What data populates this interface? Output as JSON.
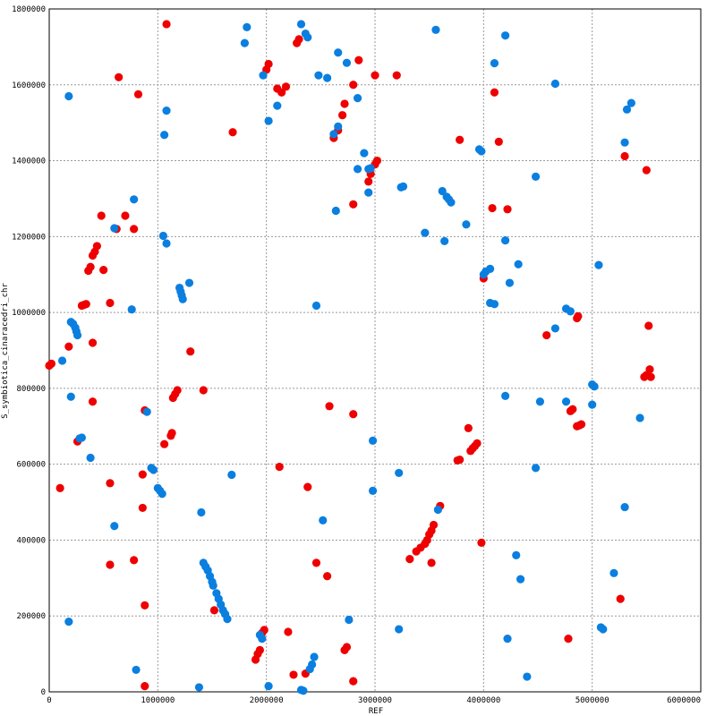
{
  "chart_data": {
    "type": "scatter",
    "xlabel": "REF",
    "ylabel": "S_symbiotica_cinaracedri_chr",
    "xlim": [
      0,
      6000000
    ],
    "ylim": [
      0,
      1800000
    ],
    "grid": true,
    "legend": "none",
    "x_ticks": [
      "0",
      "1000000",
      "2000000",
      "3000000",
      "4000000",
      "5000000",
      "6000000"
    ],
    "y_ticks": [
      "0",
      "200000",
      "400000",
      "600000",
      "800000",
      "1000000",
      "1200000",
      "1400000",
      "1600000",
      "1800000"
    ],
    "series": [
      {
        "color": "#ee0000",
        "points": [
          [
            1080000,
            1760000
          ],
          [
            640000,
            1620000
          ],
          [
            820000,
            1575000
          ],
          [
            1690000,
            1475000
          ],
          [
            2000000,
            1640000
          ],
          [
            2020000,
            1655000
          ],
          [
            2100000,
            1590000
          ],
          [
            2140000,
            1580000
          ],
          [
            2180000,
            1595000
          ],
          [
            2280000,
            1710000
          ],
          [
            2300000,
            1720000
          ],
          [
            2800000,
            1600000
          ],
          [
            2850000,
            1665000
          ],
          [
            3000000,
            1625000
          ],
          [
            3200000,
            1625000
          ],
          [
            4100000,
            1580000
          ],
          [
            2620000,
            1460000
          ],
          [
            2660000,
            1480000
          ],
          [
            2700000,
            1520000
          ],
          [
            2720000,
            1550000
          ],
          [
            3780000,
            1455000
          ],
          [
            4140000,
            1450000
          ],
          [
            5300000,
            1412000
          ],
          [
            5500000,
            1375000
          ],
          [
            2940000,
            1345000
          ],
          [
            2960000,
            1365000
          ],
          [
            3000000,
            1390000
          ],
          [
            3020000,
            1400000
          ],
          [
            2800000,
            1285000
          ],
          [
            4080000,
            1275000
          ],
          [
            4220000,
            1272000
          ],
          [
            480000,
            1255000
          ],
          [
            700000,
            1255000
          ],
          [
            780000,
            1220000
          ],
          [
            620000,
            1220000
          ],
          [
            360000,
            1110000
          ],
          [
            380000,
            1120000
          ],
          [
            400000,
            1150000
          ],
          [
            420000,
            1160000
          ],
          [
            440000,
            1175000
          ],
          [
            500000,
            1112000
          ],
          [
            4000000,
            1090000
          ],
          [
            300000,
            1018000
          ],
          [
            320000,
            1020000
          ],
          [
            340000,
            1022000
          ],
          [
            560000,
            1025000
          ],
          [
            180000,
            910000
          ],
          [
            400000,
            920000
          ],
          [
            4580000,
            940000
          ],
          [
            4860000,
            985000
          ],
          [
            4870000,
            990000
          ],
          [
            0,
            860000
          ],
          [
            20000,
            865000
          ],
          [
            1300000,
            897000
          ],
          [
            5520000,
            965000
          ],
          [
            5480000,
            830000
          ],
          [
            5500000,
            835000
          ],
          [
            5530000,
            850000
          ],
          [
            5540000,
            830000
          ],
          [
            1180000,
            795000
          ],
          [
            1160000,
            785000
          ],
          [
            1140000,
            775000
          ],
          [
            1420000,
            795000
          ],
          [
            400000,
            765000
          ],
          [
            880000,
            742000
          ],
          [
            2580000,
            753000
          ],
          [
            2800000,
            732000
          ],
          [
            4800000,
            740000
          ],
          [
            4820000,
            745000
          ],
          [
            4860000,
            700000
          ],
          [
            4880000,
            702000
          ],
          [
            4900000,
            705000
          ],
          [
            3860000,
            695000
          ],
          [
            3880000,
            635000
          ],
          [
            3900000,
            642000
          ],
          [
            3920000,
            648000
          ],
          [
            3940000,
            655000
          ],
          [
            3760000,
            610000
          ],
          [
            3780000,
            612000
          ],
          [
            260000,
            660000
          ],
          [
            1060000,
            653000
          ],
          [
            1120000,
            675000
          ],
          [
            1130000,
            682000
          ],
          [
            2120000,
            593000
          ],
          [
            860000,
            573000
          ],
          [
            100000,
            537000
          ],
          [
            560000,
            550000
          ],
          [
            2380000,
            540000
          ],
          [
            860000,
            485000
          ],
          [
            3600000,
            490000
          ],
          [
            3460000,
            390000
          ],
          [
            3480000,
            400000
          ],
          [
            3500000,
            415000
          ],
          [
            3520000,
            425000
          ],
          [
            3540000,
            440000
          ],
          [
            3420000,
            380000
          ],
          [
            3380000,
            370000
          ],
          [
            3320000,
            350000
          ],
          [
            3520000,
            340000
          ],
          [
            3980000,
            393000
          ],
          [
            560000,
            335000
          ],
          [
            780000,
            347000
          ],
          [
            2460000,
            340000
          ],
          [
            2560000,
            305000
          ],
          [
            880000,
            228000
          ],
          [
            1520000,
            215000
          ],
          [
            5260000,
            245000
          ],
          [
            1900000,
            85000
          ],
          [
            1920000,
            100000
          ],
          [
            1940000,
            110000
          ],
          [
            1960000,
            155000
          ],
          [
            1980000,
            163000
          ],
          [
            2200000,
            158000
          ],
          [
            2720000,
            110000
          ],
          [
            2740000,
            118000
          ],
          [
            2250000,
            45000
          ],
          [
            2360000,
            48000
          ],
          [
            4780000,
            140000
          ],
          [
            880000,
            15000
          ],
          [
            2800000,
            28000
          ]
        ]
      },
      {
        "color": "#0a7fe0",
        "points": [
          [
            2320000,
            1760000
          ],
          [
            2360000,
            1735000
          ],
          [
            2380000,
            1725000
          ],
          [
            1820000,
            1752000
          ],
          [
            1800000,
            1710000
          ],
          [
            3560000,
            1745000
          ],
          [
            4200000,
            1730000
          ],
          [
            2660000,
            1685000
          ],
          [
            2740000,
            1658000
          ],
          [
            4100000,
            1657000
          ],
          [
            4660000,
            1603000
          ],
          [
            180000,
            1570000
          ],
          [
            1080000,
            1532000
          ],
          [
            1970000,
            1625000
          ],
          [
            2480000,
            1625000
          ],
          [
            2560000,
            1618000
          ],
          [
            2100000,
            1545000
          ],
          [
            2020000,
            1505000
          ],
          [
            2620000,
            1470000
          ],
          [
            2660000,
            1490000
          ],
          [
            2840000,
            1565000
          ],
          [
            5320000,
            1535000
          ],
          [
            5360000,
            1552000
          ],
          [
            1060000,
            1468000
          ],
          [
            5300000,
            1448000
          ],
          [
            3960000,
            1430000
          ],
          [
            3980000,
            1425000
          ],
          [
            2900000,
            1420000
          ],
          [
            2840000,
            1378000
          ],
          [
            2940000,
            1378000
          ],
          [
            2960000,
            1380000
          ],
          [
            4480000,
            1358000
          ],
          [
            3240000,
            1330000
          ],
          [
            3260000,
            1332000
          ],
          [
            2940000,
            1316000
          ],
          [
            3620000,
            1320000
          ],
          [
            3660000,
            1305000
          ],
          [
            3680000,
            1298000
          ],
          [
            3700000,
            1290000
          ],
          [
            2640000,
            1268000
          ],
          [
            3840000,
            1232000
          ],
          [
            600000,
            1222000
          ],
          [
            780000,
            1298000
          ],
          [
            1050000,
            1202000
          ],
          [
            1080000,
            1182000
          ],
          [
            3460000,
            1210000
          ],
          [
            3640000,
            1188000
          ],
          [
            4200000,
            1190000
          ],
          [
            4320000,
            1127000
          ],
          [
            5060000,
            1125000
          ],
          [
            4000000,
            1100000
          ],
          [
            4020000,
            1108000
          ],
          [
            4060000,
            1115000
          ],
          [
            4240000,
            1078000
          ],
          [
            1200000,
            1065000
          ],
          [
            1210000,
            1055000
          ],
          [
            1220000,
            1045000
          ],
          [
            1230000,
            1035000
          ],
          [
            1290000,
            1078000
          ],
          [
            760000,
            1008000
          ],
          [
            2460000,
            1018000
          ],
          [
            4060000,
            1025000
          ],
          [
            4100000,
            1022000
          ],
          [
            200000,
            975000
          ],
          [
            220000,
            970000
          ],
          [
            240000,
            960000
          ],
          [
            250000,
            950000
          ],
          [
            260000,
            940000
          ],
          [
            4760000,
            1010000
          ],
          [
            4800000,
            1003000
          ],
          [
            4660000,
            958000
          ],
          [
            120000,
            873000
          ],
          [
            5000000,
            810000
          ],
          [
            5020000,
            805000
          ],
          [
            200000,
            778000
          ],
          [
            4200000,
            780000
          ],
          [
            4520000,
            765000
          ],
          [
            4760000,
            765000
          ],
          [
            5000000,
            757000
          ],
          [
            5440000,
            722000
          ],
          [
            900000,
            738000
          ],
          [
            280000,
            668000
          ],
          [
            300000,
            670000
          ],
          [
            2980000,
            662000
          ],
          [
            380000,
            617000
          ],
          [
            940000,
            590000
          ],
          [
            960000,
            585000
          ],
          [
            1680000,
            572000
          ],
          [
            3220000,
            577000
          ],
          [
            4480000,
            590000
          ],
          [
            1000000,
            537000
          ],
          [
            1020000,
            530000
          ],
          [
            1040000,
            522000
          ],
          [
            2980000,
            530000
          ],
          [
            1400000,
            473000
          ],
          [
            2520000,
            452000
          ],
          [
            3580000,
            480000
          ],
          [
            5300000,
            487000
          ],
          [
            600000,
            437000
          ],
          [
            1420000,
            340000
          ],
          [
            1440000,
            330000
          ],
          [
            1460000,
            320000
          ],
          [
            1480000,
            305000
          ],
          [
            1500000,
            290000
          ],
          [
            1510000,
            280000
          ],
          [
            1540000,
            260000
          ],
          [
            1560000,
            245000
          ],
          [
            1580000,
            230000
          ],
          [
            1600000,
            215000
          ],
          [
            1620000,
            205000
          ],
          [
            1640000,
            192000
          ],
          [
            4300000,
            360000
          ],
          [
            4340000,
            297000
          ],
          [
            5200000,
            313000
          ],
          [
            180000,
            185000
          ],
          [
            2760000,
            190000
          ],
          [
            3220000,
            165000
          ],
          [
            1940000,
            150000
          ],
          [
            1960000,
            140000
          ],
          [
            4220000,
            140000
          ],
          [
            5080000,
            170000
          ],
          [
            5100000,
            165000
          ],
          [
            800000,
            58000
          ],
          [
            2400000,
            60000
          ],
          [
            2420000,
            72000
          ],
          [
            2440000,
            92000
          ],
          [
            4400000,
            40000
          ],
          [
            1380000,
            12000
          ],
          [
            2020000,
            15000
          ],
          [
            2320000,
            5000
          ],
          [
            2340000,
            3000
          ]
        ]
      }
    ]
  }
}
